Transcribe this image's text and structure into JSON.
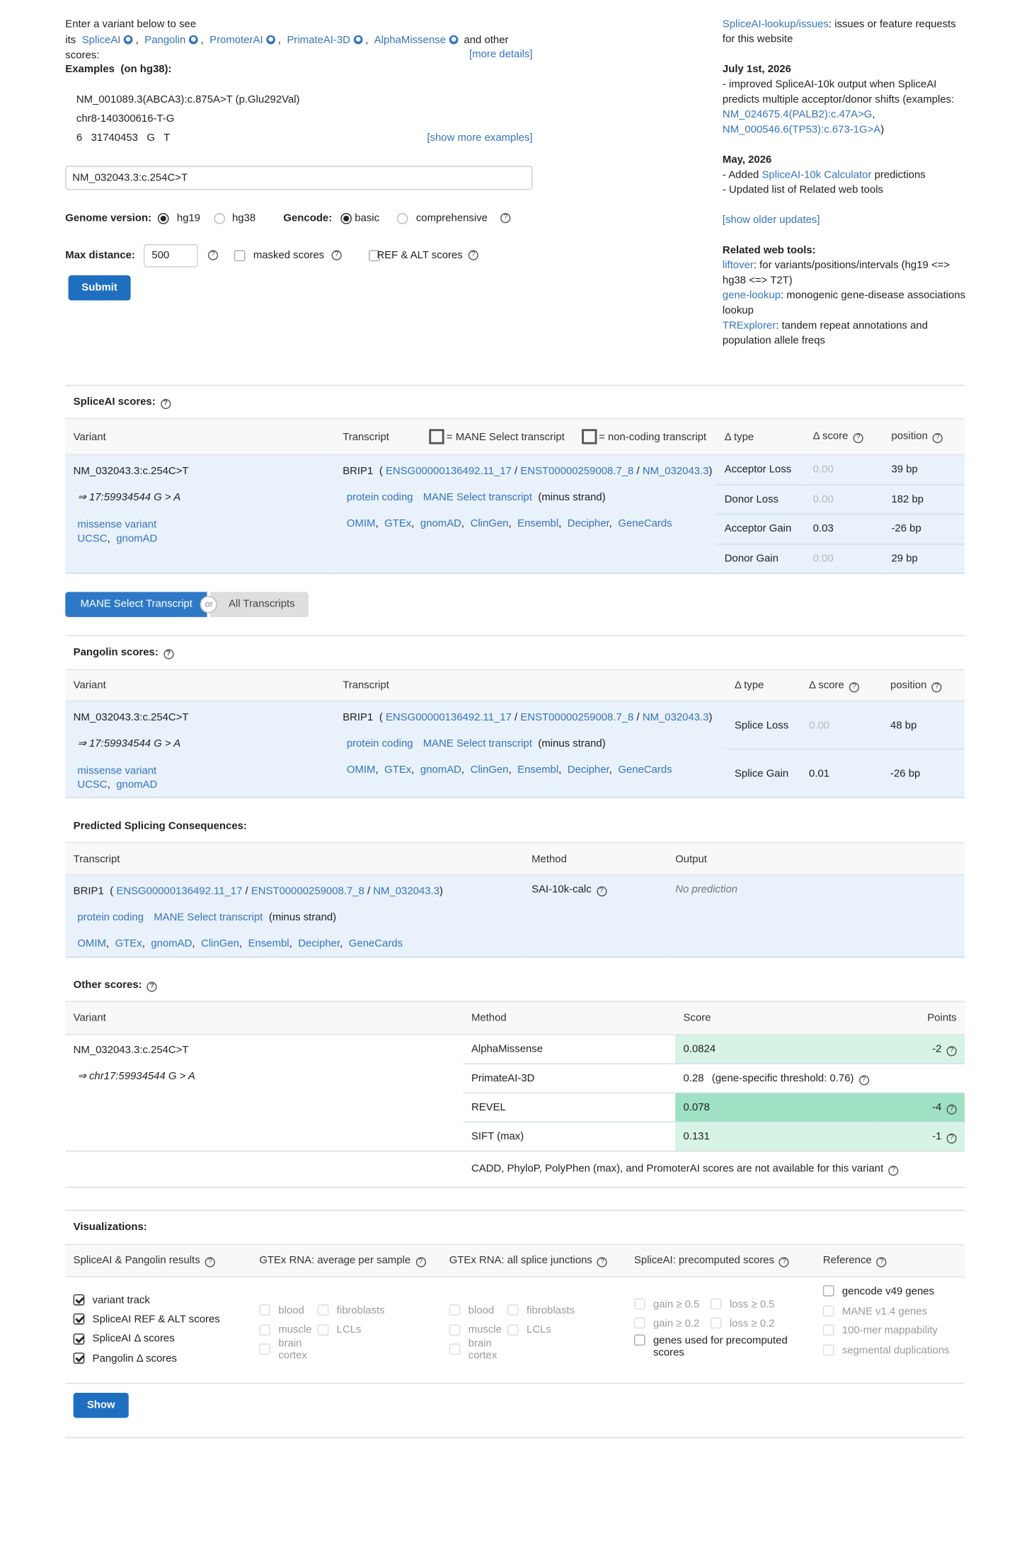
{
  "header": {
    "intro": "Enter a variant below to see its",
    "tools": [
      "SpliceAI",
      "Pangolin",
      "PromoterAI",
      "PrimateAI-3D",
      "AlphaMissense"
    ],
    "intro_end": "and other scores:",
    "more_details": "[more details]",
    "examples_label": "Examples",
    "examples_genome": "(on hg38):",
    "examples": [
      "NM_001089.3(ABCA3):c.875A>T (p.Glu292Val)",
      "chr8-140300616-T-G",
      "6   31740453   G   T"
    ],
    "show_more": "[show more examples]"
  },
  "form": {
    "variant": "NM_032043.3:c.254C>T",
    "genome_label": "Genome version:",
    "genome_options": [
      "hg19",
      "hg38"
    ],
    "genome_selected": 0,
    "gencode_label": "Gencode:",
    "gencode_options": [
      "basic",
      "comprehensive"
    ],
    "gencode_selected": 0,
    "max_distance_label": "Max distance:",
    "max_distance": 500,
    "masked_scores": "masked scores",
    "masked_checked": false,
    "ref_alt_scores": "REF & ALT scores",
    "ref_alt_checked": false,
    "submit": "Submit"
  },
  "updates": {
    "issues_link": "SpliceAI-lookup/issues",
    "issues_text": ": issues or feature requests for this website",
    "entries": [
      {
        "date": "July 1st, 2026",
        "lines": [
          [
            {
              "text": "- improved SpliceAI-10k output when SpliceAI predicts multiple acceptor/donor shifts (examples: "
            },
            {
              "link": "NM_024675.4(PALB2):c.47A>G"
            },
            {
              "text": ", "
            },
            {
              "link": "NM_000546.6(TP53):c.673-1G>A"
            },
            {
              "text": ")"
            }
          ]
        ]
      },
      {
        "date": "May, 2026",
        "lines": [
          [
            {
              "text": "- Added "
            },
            {
              "link": "SpliceAI-10k Calculator"
            },
            {
              "text": " predictions"
            }
          ],
          [
            {
              "text": "- Updated list of Related web tools"
            }
          ]
        ]
      }
    ],
    "show_older": "[show older updates]",
    "related_title": "Related web tools:",
    "related": [
      {
        "link": "liftover",
        "text": ": for variants/positions/intervals (hg19 <=> hg38 <=> T2T)"
      },
      {
        "link": "gene-lookup",
        "text": ": monogenic gene-disease associations lookup"
      },
      {
        "link": "TRExplorer",
        "text": ": tandem repeat annotations and population allele freqs"
      }
    ]
  },
  "spliceai": {
    "title": "SpliceAI scores:",
    "headers": {
      "variant": "Variant",
      "transcript": "Transcript",
      "mane_legend": "= MANE Select transcript",
      "noncoding_legend": "= non-coding transcript",
      "type": "Δ type",
      "score": "Δ score",
      "position": "position"
    },
    "variant": {
      "name": "NM_032043.3:c.254C>T",
      "coords": "⇒ 17:59934544 G > A",
      "consequence": "missense variant",
      "links": [
        "UCSC",
        "gnomAD"
      ]
    },
    "transcript": {
      "gene": "BRIP1",
      "ids": [
        "ENSG00000136492.11_17",
        "ENST00000259008.7_8",
        "NM_032043.3"
      ],
      "biotype": "protein coding",
      "mane": "MANE Select transcript",
      "strand": "(minus strand)",
      "links": [
        "OMIM",
        "GTEx",
        "gnomAD",
        "ClinGen",
        "Ensembl",
        "Decipher",
        "GeneCards"
      ]
    },
    "rows": [
      {
        "type": "Acceptor Loss",
        "score": "0.00",
        "position": "39 bp"
      },
      {
        "type": "Donor Loss",
        "score": "0.00",
        "position": "182 bp"
      },
      {
        "type": "Acceptor Gain",
        "score": "0.03",
        "position": "-26 bp"
      },
      {
        "type": "Donor Gain",
        "score": "0.00",
        "position": "29 bp"
      }
    ]
  },
  "transcript_toggle": {
    "selected": "MANE Select Transcript",
    "or": "or",
    "other": "All Transcripts"
  },
  "pangolin": {
    "title": "Pangolin scores:",
    "headers": {
      "variant": "Variant",
      "transcript": "Transcript",
      "type": "Δ type",
      "score": "Δ score",
      "position": "position"
    },
    "variant": {
      "name": "NM_032043.3:c.254C>T",
      "coords": "⇒ 17:59934544 G > A",
      "consequence": "missense variant",
      "links": [
        "UCSC",
        "gnomAD"
      ]
    },
    "transcript": {
      "gene": "BRIP1",
      "ids": [
        "ENSG00000136492.11_17",
        "ENST00000259008.7_8",
        "NM_032043.3"
      ],
      "biotype": "protein coding",
      "mane": "MANE Select transcript",
      "strand": "(minus strand)",
      "links": [
        "OMIM",
        "GTEx",
        "gnomAD",
        "ClinGen",
        "Ensembl",
        "Decipher",
        "GeneCards"
      ]
    },
    "rows": [
      {
        "type": "Splice Loss",
        "score": "0.00",
        "position": "48 bp"
      },
      {
        "type": "Splice Gain",
        "score": "0.01",
        "position": "-26 bp"
      }
    ]
  },
  "consequences": {
    "title": "Predicted Splicing Consequences:",
    "headers": [
      "Transcript",
      "Method",
      "Output"
    ],
    "transcript": {
      "gene": "BRIP1",
      "ids": [
        "ENSG00000136492.11_17",
        "ENST00000259008.7_8",
        "NM_032043.3"
      ],
      "biotype": "protein coding",
      "mane": "MANE Select transcript",
      "strand": "(minus strand)",
      "links": [
        "OMIM",
        "GTEx",
        "gnomAD",
        "ClinGen",
        "Ensembl",
        "Decipher",
        "GeneCards"
      ]
    },
    "method": "SAI-10k-calc",
    "output": "No prediction"
  },
  "other_scores": {
    "title": "Other scores:",
    "headers": [
      "Variant",
      "Method",
      "Score",
      "Points"
    ],
    "variant": {
      "name": "NM_032043.3:c.254C>T",
      "coords": "⇒ chr17:59934544 G > A"
    },
    "rows": [
      {
        "method": "AlphaMissense",
        "score": 0.0824,
        "points": -2,
        "color": "#d6f3e6"
      },
      {
        "method": "PrimateAI-3D",
        "score": 0.28,
        "note": "(gene-specific threshold: 0.76)"
      },
      {
        "method": "REVEL",
        "score": 0.078,
        "points": -4,
        "color": "#9fe1c3"
      },
      {
        "method": "SIFT (max)",
        "score": 0.131,
        "points": -1,
        "color": "#d6f3e6"
      }
    ],
    "note": "CADD, PhyloP, PolyPhen (max), and PromoterAI scores are not available for this variant"
  },
  "visualizations": {
    "title": "Visualizations:",
    "columns": [
      {
        "title": "SpliceAI & Pangolin results",
        "options": [
          {
            "label": "variant track",
            "checked": true,
            "enabled": true
          },
          {
            "label": "SpliceAI REF & ALT scores",
            "checked": true,
            "enabled": true
          },
          {
            "label": "SpliceAI Δ scores",
            "checked": true,
            "enabled": true
          },
          {
            "label": "Pangolin Δ scores",
            "checked": true,
            "enabled": true
          }
        ]
      },
      {
        "title": "GTEx RNA: average per sample",
        "options": [
          {
            "label": "blood",
            "checked": false,
            "enabled": false
          },
          {
            "label": "fibroblasts",
            "checked": false,
            "enabled": false
          },
          {
            "label": "muscle",
            "checked": false,
            "enabled": false
          },
          {
            "label": "LCLs",
            "checked": false,
            "enabled": false
          },
          {
            "label": "brain cortex",
            "checked": false,
            "enabled": false
          }
        ]
      },
      {
        "title": "GTEx RNA: all splice junctions",
        "options": [
          {
            "label": "blood",
            "checked": false,
            "enabled": false
          },
          {
            "label": "fibroblasts",
            "checked": false,
            "enabled": false
          },
          {
            "label": "muscle",
            "checked": false,
            "enabled": false
          },
          {
            "label": "LCLs",
            "checked": false,
            "enabled": false
          },
          {
            "label": "brain cortex",
            "checked": false,
            "enabled": false
          }
        ]
      },
      {
        "title": "SpliceAI: precomputed scores",
        "options": [
          {
            "label": "gain ≥ 0.5",
            "checked": false,
            "enabled": false
          },
          {
            "label": "loss ≥ 0.5",
            "checked": false,
            "enabled": false
          },
          {
            "label": "gain ≥ 0.2",
            "checked": false,
            "enabled": false
          },
          {
            "label": "loss ≥ 0.2",
            "checked": false,
            "enabled": false
          },
          {
            "label": "genes used for precomputed scores",
            "checked": false,
            "enabled": true
          }
        ]
      },
      {
        "title": "Reference",
        "options": [
          {
            "label": "gencode v49 genes",
            "checked": false,
            "enabled": true
          },
          {
            "label": "MANE v1.4 genes",
            "checked": false,
            "enabled": false
          },
          {
            "label": "100-mer mappability",
            "checked": false,
            "enabled": false
          },
          {
            "label": "segmental duplications",
            "checked": false,
            "enabled": false
          }
        ]
      }
    ],
    "button": "Show"
  }
}
